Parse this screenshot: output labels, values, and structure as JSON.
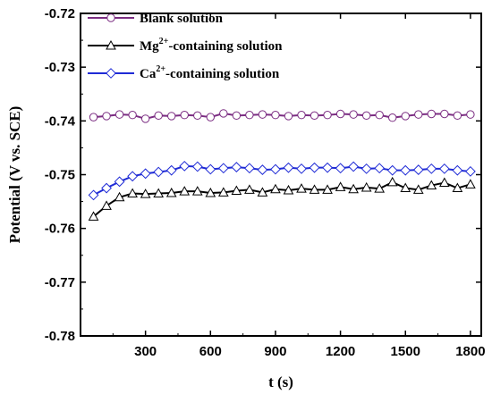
{
  "chart_data": {
    "type": "line",
    "xlabel": "t (s)",
    "ylabel": "Potential (V vs. SCE)",
    "xlim": [
      0,
      1850
    ],
    "ylim": [
      -0.78,
      -0.72
    ],
    "xticks": [
      300,
      600,
      900,
      1200,
      1500,
      1800
    ],
    "yticks": [
      -0.72,
      -0.73,
      -0.74,
      -0.75,
      -0.76,
      -0.77,
      -0.78
    ],
    "xtick_labels": [
      "300",
      "600",
      "900",
      "1200",
      "1500",
      "1800"
    ],
    "ytick_labels": [
      "-0.72",
      "-0.73",
      "-0.74",
      "-0.75",
      "-0.76",
      "-0.77",
      "-0.78"
    ],
    "grid": false,
    "legend_position": "top-left",
    "x": [
      60,
      120,
      180,
      240,
      300,
      360,
      420,
      480,
      540,
      600,
      660,
      720,
      780,
      840,
      900,
      960,
      1020,
      1080,
      1140,
      1200,
      1260,
      1320,
      1380,
      1440,
      1500,
      1560,
      1620,
      1680,
      1740,
      1800
    ],
    "series": [
      {
        "legend_main": "Blank solution",
        "legend_sup": "",
        "legend_rest": "",
        "color": "#7b2d82",
        "marker": "circle",
        "values": [
          -0.7393,
          -0.7391,
          -0.7388,
          -0.7389,
          -0.7396,
          -0.739,
          -0.7391,
          -0.7389,
          -0.739,
          -0.7393,
          -0.7386,
          -0.739,
          -0.7389,
          -0.7388,
          -0.7389,
          -0.7391,
          -0.7389,
          -0.739,
          -0.7389,
          -0.7387,
          -0.7388,
          -0.739,
          -0.7389,
          -0.7394,
          -0.7391,
          -0.7388,
          -0.7387,
          -0.7387,
          -0.739,
          -0.7388
        ]
      },
      {
        "legend_main": "Mg",
        "legend_sup": "2+",
        "legend_rest": "-containing solution",
        "color": "#000000",
        "marker": "triangle",
        "values": [
          -0.7578,
          -0.7558,
          -0.7542,
          -0.7535,
          -0.7536,
          -0.7535,
          -0.7534,
          -0.7531,
          -0.7531,
          -0.7534,
          -0.7533,
          -0.753,
          -0.7528,
          -0.7533,
          -0.7527,
          -0.7529,
          -0.7526,
          -0.7528,
          -0.7528,
          -0.7523,
          -0.7527,
          -0.7524,
          -0.7526,
          -0.7514,
          -0.7525,
          -0.7528,
          -0.752,
          -0.7515,
          -0.7525,
          -0.7518
        ]
      },
      {
        "legend_main": "Ca",
        "legend_sup": "2+",
        "legend_rest": "-containing solution",
        "color": "#1f2bd6",
        "marker": "diamond",
        "values": [
          -0.7538,
          -0.7525,
          -0.7513,
          -0.7503,
          -0.7498,
          -0.7495,
          -0.7492,
          -0.7484,
          -0.7485,
          -0.749,
          -0.7488,
          -0.7486,
          -0.7488,
          -0.7491,
          -0.749,
          -0.7487,
          -0.7489,
          -0.7487,
          -0.7487,
          -0.7488,
          -0.7485,
          -0.7489,
          -0.7488,
          -0.7492,
          -0.7492,
          -0.7491,
          -0.7489,
          -0.7489,
          -0.7492,
          -0.7494
        ]
      }
    ]
  }
}
